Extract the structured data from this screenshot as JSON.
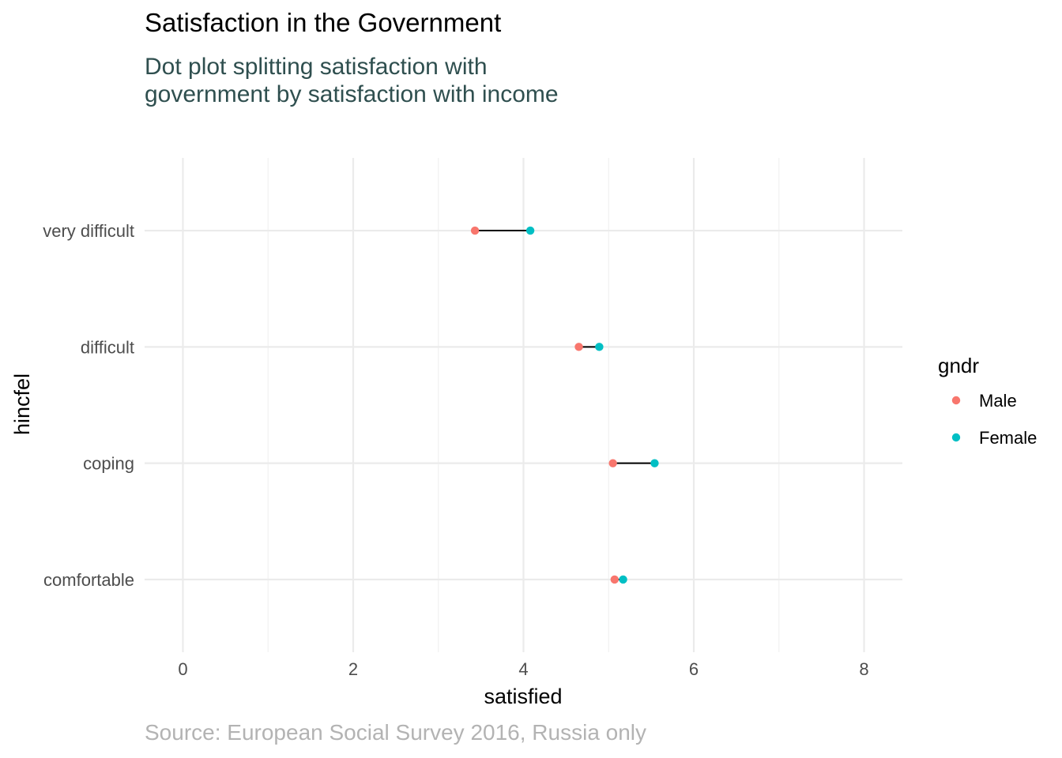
{
  "chart_data": {
    "type": "dot-dumbbell",
    "title": "Satisfaction in the Government",
    "subtitle_lines": [
      "Dot plot splitting satisfaction with",
      "government by satisfaction with income"
    ],
    "caption": "Source: European Social Survey 2016, Russia only",
    "xlabel": "satisfied",
    "ylabel": "hincfel",
    "xlim": [
      -0.45,
      8.45
    ],
    "x_ticks": [
      0,
      2,
      4,
      6,
      8
    ],
    "x_tick_labels": [
      "0",
      "2",
      "4",
      "6",
      "8"
    ],
    "categories": [
      "very difficult",
      "difficult",
      "coping",
      "comfortable"
    ],
    "series": [
      {
        "name": "Male",
        "color": "#F8766D",
        "values": [
          3.43,
          4.65,
          5.05,
          5.07
        ]
      },
      {
        "name": "Female",
        "color": "#00BFC4",
        "values": [
          4.08,
          4.89,
          5.54,
          5.17
        ]
      }
    ],
    "legend": {
      "title": "gndr",
      "position": "right"
    },
    "grid": true
  }
}
